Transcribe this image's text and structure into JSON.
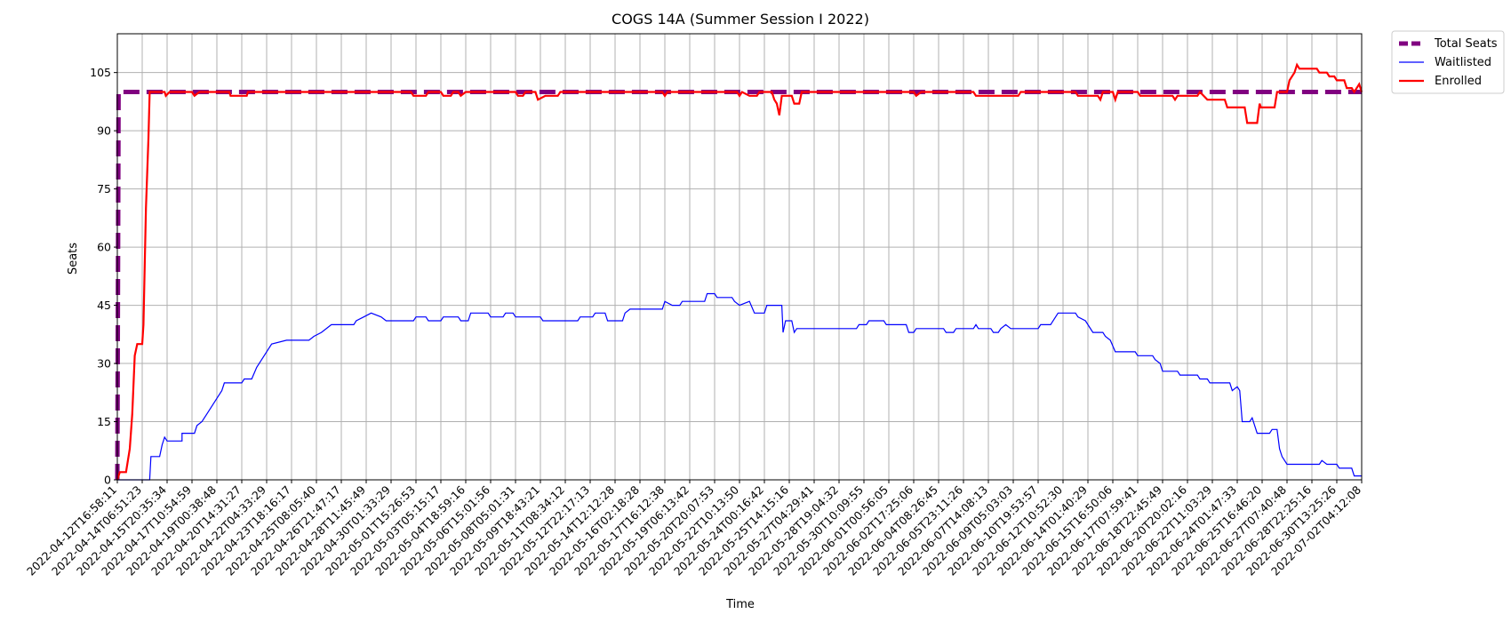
{
  "chart_data": {
    "type": "line",
    "title": "COGS 14A (Summer Session I 2022)",
    "xlabel": "Time",
    "ylabel": "Seats",
    "grid": true,
    "legend_placement": "outside-top-right",
    "ylim": [
      0,
      115
    ],
    "yticks": [
      0,
      15,
      30,
      45,
      60,
      75,
      90,
      105
    ],
    "x_range_index": [
      0,
      50
    ],
    "xticks": [
      "2022-04-12T16:58:11",
      "2022-04-14T06:51:23",
      "2022-04-15T20:35:34",
      "2022-04-17T10:54:59",
      "2022-04-19T00:38:48",
      "2022-04-20T14:31:27",
      "2022-04-22T04:33:29",
      "2022-04-23T18:16:17",
      "2022-04-25T08:05:40",
      "2022-04-26T21:47:17",
      "2022-04-28T11:45:49",
      "2022-04-30T01:33:29",
      "2022-05-01T15:26:53",
      "2022-05-03T05:15:17",
      "2022-05-04T18:59:16",
      "2022-05-06T15:01:56",
      "2022-05-08T05:01:31",
      "2022-05-09T18:43:21",
      "2022-05-11T08:34:12",
      "2022-05-12T22:17:13",
      "2022-05-14T12:12:28",
      "2022-05-16T02:18:28",
      "2022-05-17T16:12:38",
      "2022-05-19T06:13:42",
      "2022-05-20T20:07:53",
      "2022-05-22T10:13:50",
      "2022-05-24T00:16:42",
      "2022-05-25T14:15:16",
      "2022-05-27T04:29:41",
      "2022-05-28T19:04:32",
      "2022-05-30T10:09:55",
      "2022-06-01T00:56:05",
      "2022-06-02T17:25:06",
      "2022-06-04T08:26:45",
      "2022-06-05T23:11:26",
      "2022-06-07T14:08:13",
      "2022-06-09T05:03:03",
      "2022-06-10T19:53:57",
      "2022-06-12T10:52:30",
      "2022-06-14T01:40:29",
      "2022-06-15T16:50:06",
      "2022-06-17T07:59:41",
      "2022-06-18T22:45:49",
      "2022-06-20T20:02:16",
      "2022-06-22T11:03:29",
      "2022-06-24T01:47:33",
      "2022-06-25T16:46:20",
      "2022-06-27T07:40:48",
      "2022-06-28T22:25:16",
      "2022-06-30T13:25:26",
      "2022-07-02T04:12:08"
    ],
    "series": [
      {
        "name": "Total Seats",
        "color": "#800080",
        "style": "dashed",
        "points": [
          [
            0,
            0
          ],
          [
            0.05,
            100
          ],
          [
            50,
            100
          ]
        ]
      },
      {
        "name": "Waitlisted",
        "color": "#0000ff",
        "style": "solid",
        "points": [
          [
            0,
            0
          ],
          [
            1.3,
            0
          ],
          [
            1.35,
            6
          ],
          [
            1.7,
            6
          ],
          [
            1.8,
            9
          ],
          [
            1.9,
            11
          ],
          [
            2.0,
            10
          ],
          [
            2.6,
            10
          ],
          [
            2.6,
            12
          ],
          [
            3.1,
            12
          ],
          [
            3.2,
            14
          ],
          [
            3.4,
            15
          ],
          [
            3.6,
            17
          ],
          [
            3.8,
            19
          ],
          [
            4.0,
            21
          ],
          [
            4.2,
            23
          ],
          [
            4.3,
            25
          ],
          [
            5.0,
            25
          ],
          [
            5.1,
            26
          ],
          [
            5.4,
            26
          ],
          [
            5.6,
            29
          ],
          [
            5.8,
            31
          ],
          [
            6.0,
            33
          ],
          [
            6.2,
            35
          ],
          [
            6.8,
            36
          ],
          [
            7.7,
            36
          ],
          [
            7.9,
            37
          ],
          [
            8.2,
            38
          ],
          [
            8.6,
            40
          ],
          [
            9.5,
            40
          ],
          [
            9.6,
            41
          ],
          [
            9.9,
            42
          ],
          [
            10.2,
            43
          ],
          [
            10.6,
            42
          ],
          [
            10.8,
            41
          ],
          [
            11.9,
            41
          ],
          [
            12.0,
            42
          ],
          [
            12.4,
            42
          ],
          [
            12.5,
            41
          ],
          [
            13.0,
            41
          ],
          [
            13.1,
            42
          ],
          [
            13.7,
            42
          ],
          [
            13.8,
            41
          ],
          [
            14.1,
            41
          ],
          [
            14.2,
            43
          ],
          [
            14.9,
            43
          ],
          [
            15.0,
            42
          ],
          [
            15.5,
            42
          ],
          [
            15.6,
            43
          ],
          [
            15.9,
            43
          ],
          [
            16.0,
            42
          ],
          [
            17.0,
            42
          ],
          [
            17.1,
            41
          ],
          [
            18.5,
            41
          ],
          [
            18.6,
            42
          ],
          [
            19.1,
            42
          ],
          [
            19.2,
            43
          ],
          [
            19.6,
            43
          ],
          [
            19.7,
            41
          ],
          [
            20.3,
            41
          ],
          [
            20.4,
            43
          ],
          [
            20.6,
            44
          ],
          [
            21.9,
            44
          ],
          [
            22.0,
            46
          ],
          [
            22.3,
            45
          ],
          [
            22.6,
            45
          ],
          [
            22.7,
            46
          ],
          [
            23.6,
            46
          ],
          [
            23.7,
            48
          ],
          [
            24.0,
            48
          ],
          [
            24.1,
            47
          ],
          [
            24.7,
            47
          ],
          [
            24.8,
            46
          ],
          [
            25.0,
            45
          ],
          [
            25.4,
            46
          ],
          [
            25.6,
            43
          ],
          [
            26.0,
            43
          ],
          [
            26.1,
            45
          ],
          [
            26.7,
            45
          ],
          [
            26.75,
            38
          ],
          [
            26.85,
            41
          ],
          [
            27.1,
            41
          ],
          [
            27.2,
            38
          ],
          [
            27.3,
            39
          ],
          [
            29.7,
            39
          ],
          [
            29.8,
            40
          ],
          [
            30.1,
            40
          ],
          [
            30.2,
            41
          ],
          [
            30.8,
            41
          ],
          [
            30.9,
            40
          ],
          [
            31.7,
            40
          ],
          [
            31.8,
            38
          ],
          [
            32.0,
            38
          ],
          [
            32.1,
            39
          ],
          [
            33.2,
            39
          ],
          [
            33.3,
            38
          ],
          [
            33.6,
            38
          ],
          [
            33.7,
            39
          ],
          [
            34.4,
            39
          ],
          [
            34.5,
            40
          ],
          [
            34.6,
            39
          ],
          [
            35.1,
            39
          ],
          [
            35.2,
            38
          ],
          [
            35.4,
            38
          ],
          [
            35.5,
            39
          ],
          [
            35.7,
            40
          ],
          [
            35.9,
            39
          ],
          [
            37.0,
            39
          ],
          [
            37.1,
            40
          ],
          [
            37.5,
            40
          ],
          [
            37.7,
            42
          ],
          [
            37.8,
            43
          ],
          [
            38.5,
            43
          ],
          [
            38.6,
            42
          ],
          [
            38.9,
            41
          ],
          [
            39.2,
            38
          ],
          [
            39.6,
            38
          ],
          [
            39.7,
            37
          ],
          [
            39.9,
            36
          ],
          [
            40.1,
            33
          ],
          [
            40.9,
            33
          ],
          [
            41.0,
            32
          ],
          [
            41.6,
            32
          ],
          [
            41.7,
            31
          ],
          [
            41.9,
            30
          ],
          [
            42.0,
            28
          ],
          [
            42.6,
            28
          ],
          [
            42.7,
            27
          ],
          [
            43.4,
            27
          ],
          [
            43.5,
            26
          ],
          [
            43.8,
            26
          ],
          [
            43.9,
            25
          ],
          [
            44.7,
            25
          ],
          [
            44.8,
            23
          ],
          [
            45.0,
            24
          ],
          [
            45.1,
            23
          ],
          [
            45.2,
            15
          ],
          [
            45.5,
            15
          ],
          [
            45.6,
            16
          ],
          [
            45.8,
            12
          ],
          [
            46.3,
            12
          ],
          [
            46.4,
            13
          ],
          [
            46.6,
            13
          ],
          [
            46.7,
            8
          ],
          [
            46.8,
            6
          ],
          [
            47.0,
            4
          ],
          [
            48.3,
            4
          ],
          [
            48.4,
            5
          ],
          [
            48.6,
            4
          ],
          [
            49.0,
            4
          ],
          [
            49.1,
            3
          ],
          [
            49.6,
            3
          ],
          [
            49.7,
            1
          ],
          [
            50.0,
            1
          ]
        ]
      },
      {
        "name": "Enrolled",
        "color": "#ff0000",
        "style": "solid",
        "points": [
          [
            0,
            0
          ],
          [
            0.1,
            2
          ],
          [
            0.35,
            2
          ],
          [
            0.5,
            8
          ],
          [
            0.6,
            17
          ],
          [
            0.7,
            32
          ],
          [
            0.8,
            35
          ],
          [
            1.0,
            35
          ],
          [
            1.05,
            40
          ],
          [
            1.15,
            70
          ],
          [
            1.25,
            88
          ],
          [
            1.3,
            100
          ],
          [
            1.9,
            100
          ],
          [
            1.95,
            99
          ],
          [
            2.1,
            100
          ],
          [
            3.0,
            100
          ],
          [
            3.1,
            99
          ],
          [
            3.3,
            100
          ],
          [
            4.5,
            100
          ],
          [
            4.55,
            99
          ],
          [
            5.2,
            99
          ],
          [
            5.25,
            100
          ],
          [
            11.8,
            100
          ],
          [
            11.9,
            99
          ],
          [
            12.4,
            99
          ],
          [
            12.5,
            100
          ],
          [
            13.0,
            100
          ],
          [
            13.1,
            99
          ],
          [
            13.4,
            99
          ],
          [
            13.5,
            100
          ],
          [
            13.7,
            100
          ],
          [
            13.8,
            99
          ],
          [
            14.0,
            100
          ],
          [
            16.0,
            100
          ],
          [
            16.1,
            99
          ],
          [
            16.3,
            99
          ],
          [
            16.4,
            100
          ],
          [
            16.8,
            100
          ],
          [
            16.9,
            98
          ],
          [
            17.2,
            99
          ],
          [
            17.7,
            99
          ],
          [
            17.8,
            100
          ],
          [
            21.9,
            100
          ],
          [
            22.0,
            99
          ],
          [
            22.1,
            100
          ],
          [
            24.9,
            100
          ],
          [
            25.0,
            99
          ],
          [
            25.1,
            100
          ],
          [
            25.4,
            99
          ],
          [
            25.7,
            99
          ],
          [
            25.8,
            100
          ],
          [
            26.3,
            100
          ],
          [
            26.4,
            98
          ],
          [
            26.5,
            97
          ],
          [
            26.6,
            94
          ],
          [
            26.7,
            99
          ],
          [
            27.1,
            99
          ],
          [
            27.2,
            97
          ],
          [
            27.4,
            97
          ],
          [
            27.5,
            100
          ],
          [
            32.0,
            100
          ],
          [
            32.1,
            99
          ],
          [
            32.3,
            100
          ],
          [
            34.4,
            100
          ],
          [
            34.5,
            99
          ],
          [
            36.2,
            99
          ],
          [
            36.3,
            100
          ],
          [
            38.5,
            100
          ],
          [
            38.6,
            99
          ],
          [
            39.4,
            99
          ],
          [
            39.5,
            98
          ],
          [
            39.6,
            100
          ],
          [
            40.0,
            100
          ],
          [
            40.1,
            98
          ],
          [
            40.2,
            100
          ],
          [
            41.0,
            100
          ],
          [
            41.1,
            99
          ],
          [
            42.4,
            99
          ],
          [
            42.5,
            98
          ],
          [
            42.6,
            99
          ],
          [
            43.4,
            99
          ],
          [
            43.5,
            100
          ],
          [
            43.8,
            98
          ],
          [
            44.5,
            98
          ],
          [
            44.6,
            96
          ],
          [
            45.3,
            96
          ],
          [
            45.4,
            92
          ],
          [
            45.8,
            92
          ],
          [
            45.9,
            97
          ],
          [
            45.95,
            96
          ],
          [
            46.5,
            96
          ],
          [
            46.6,
            100
          ],
          [
            47.0,
            100
          ],
          [
            47.1,
            103
          ],
          [
            47.3,
            105
          ],
          [
            47.4,
            107
          ],
          [
            47.5,
            106
          ],
          [
            48.2,
            106
          ],
          [
            48.3,
            105
          ],
          [
            48.6,
            105
          ],
          [
            48.7,
            104
          ],
          [
            48.9,
            104
          ],
          [
            49.0,
            103
          ],
          [
            49.3,
            103
          ],
          [
            49.4,
            101
          ],
          [
            49.6,
            101
          ],
          [
            49.7,
            100
          ],
          [
            49.9,
            102
          ],
          [
            50.0,
            100
          ]
        ]
      }
    ]
  }
}
